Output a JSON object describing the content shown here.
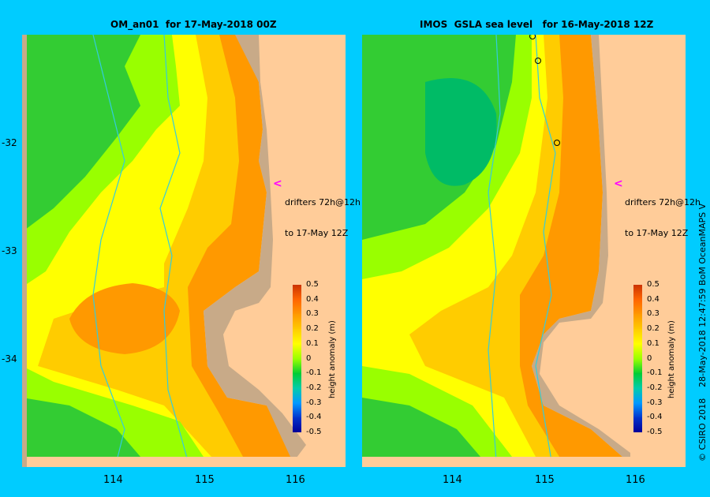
{
  "left_panel": {
    "title": "OM_an01  for 17-May-2018 00Z",
    "annotation_line1": "drifters 72h@12h",
    "annotation_line2": "to 17-May 12Z"
  },
  "right_panel": {
    "title": "IMOS  GSLA sea level   for 16-May-2018 12Z",
    "annotation_line1": "drifters 72h@12h",
    "annotation_line2": "to 17-May 12Z"
  },
  "axes": {
    "lat_ticks": [
      "-32",
      "-33",
      "-34"
    ],
    "lon_ticks": [
      "114",
      "115",
      "116"
    ]
  },
  "colorbar": {
    "title": "height anomaly (m)",
    "ticks": [
      "0.5",
      "0.4",
      "0.3",
      "0.2",
      "0.1",
      "0",
      "-0.1",
      "-0.2",
      "-0.3",
      "-0.4",
      "-0.5"
    ],
    "colors": [
      "#cc3300",
      "#ff6600",
      "#ff9900",
      "#ffcc00",
      "#ffff00",
      "#99ff00",
      "#00cc33",
      "#00ccaa",
      "#0099ff",
      "#0033cc",
      "#000099"
    ]
  },
  "credit": "© CSIRO 2018    28-May-2018 12:47:59 BoM OceanMAPS V",
  "colors": {
    "background": "#00ccff",
    "land": "#ffcc99",
    "shelf": "#c8aa88",
    "isobath": "#33ccdd"
  }
}
